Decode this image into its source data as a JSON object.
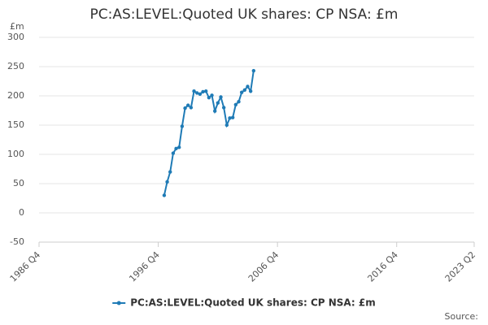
{
  "chart_data": {
    "type": "line",
    "title": "PC:AS:LEVEL:Quoted UK shares: CP NSA: £m",
    "y_unit": "£m",
    "source": "Source:",
    "x": [
      "1997 Q2",
      "1997 Q3",
      "1997 Q4",
      "1998 Q1",
      "1998 Q2",
      "1998 Q3",
      "1998 Q4",
      "1999 Q1",
      "1999 Q2",
      "1999 Q3",
      "1999 Q4",
      "2000 Q1",
      "2000 Q2",
      "2000 Q3",
      "2000 Q4",
      "2001 Q1",
      "2001 Q2",
      "2001 Q3",
      "2001 Q4",
      "2002 Q1",
      "2002 Q2",
      "2002 Q3",
      "2002 Q4",
      "2003 Q1",
      "2003 Q2",
      "2003 Q3",
      "2003 Q4",
      "2004 Q1",
      "2004 Q2",
      "2004 Q3",
      "2004 Q4"
    ],
    "series": [
      {
        "name": "PC:AS:LEVEL:Quoted UK shares: CP NSA: £m",
        "color": "#1f7bb6",
        "values": [
          30,
          53,
          70,
          102,
          110,
          112,
          148,
          179,
          184,
          180,
          208,
          205,
          203,
          207,
          208,
          197,
          201,
          174,
          188,
          198,
          180,
          150,
          162,
          163,
          185,
          190,
          206,
          210,
          216,
          208,
          243
        ]
      }
    ],
    "xlim": [
      "1986 Q4",
      "2023 Q2"
    ],
    "xticks": [
      "1986 Q4",
      "1996 Q4",
      "2006 Q4",
      "2016 Q4",
      "2023 Q2"
    ],
    "ylim": [
      -50,
      300
    ],
    "yticks": [
      -50,
      0,
      50,
      100,
      150,
      200,
      250,
      300
    ],
    "grid": true,
    "legend": "bottom"
  }
}
